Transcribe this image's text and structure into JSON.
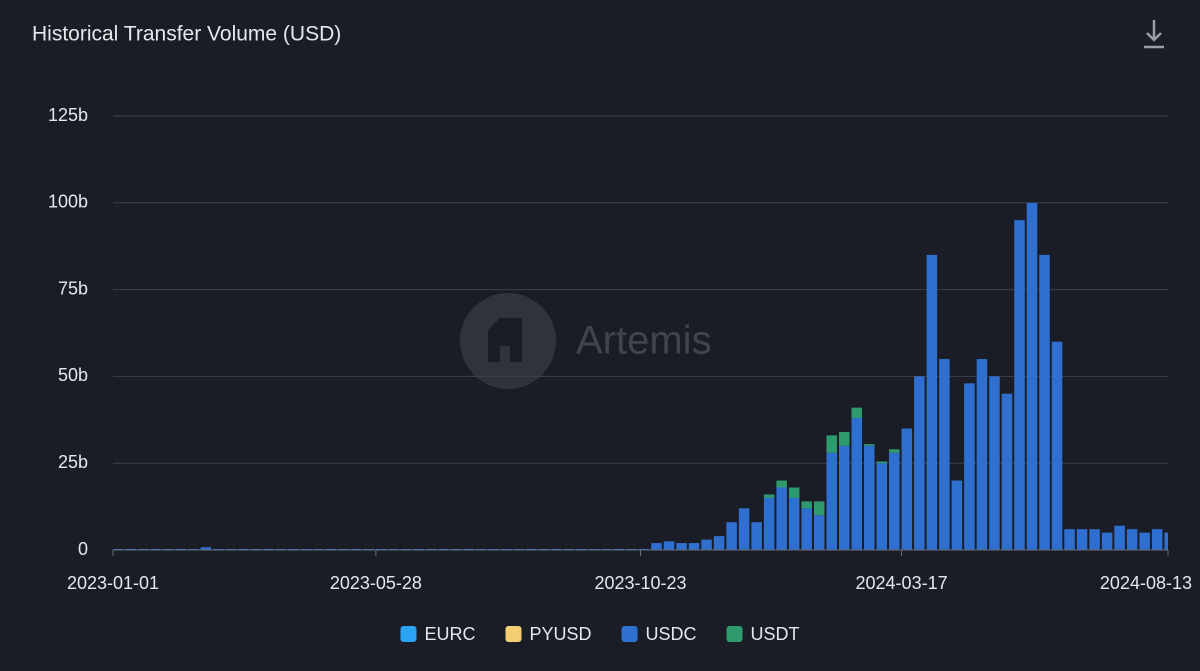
{
  "chart_data": {
    "type": "stacked-bar",
    "title": "Historical Transfer Volume (USD)",
    "watermark": "Artemis",
    "x": [
      "2023-01-01",
      "2023-01-08",
      "2023-01-15",
      "2023-01-22",
      "2023-01-29",
      "2023-02-05",
      "2023-02-12",
      "2023-02-19",
      "2023-02-26",
      "2023-03-05",
      "2023-03-12",
      "2023-03-19",
      "2023-03-26",
      "2023-04-02",
      "2023-04-09",
      "2023-04-16",
      "2023-04-23",
      "2023-04-30",
      "2023-05-07",
      "2023-05-14",
      "2023-05-21",
      "2023-05-28",
      "2023-06-04",
      "2023-06-11",
      "2023-06-18",
      "2023-06-25",
      "2023-07-02",
      "2023-07-09",
      "2023-07-16",
      "2023-07-23",
      "2023-07-30",
      "2023-08-06",
      "2023-08-13",
      "2023-08-20",
      "2023-08-27",
      "2023-09-03",
      "2023-09-10",
      "2023-09-17",
      "2023-09-24",
      "2023-10-01",
      "2023-10-08",
      "2023-10-15",
      "2023-10-22",
      "2023-10-29",
      "2023-11-05",
      "2023-11-12",
      "2023-11-19",
      "2023-11-26",
      "2023-12-03",
      "2023-12-10",
      "2023-12-17",
      "2023-12-24",
      "2023-12-31",
      "2024-01-07",
      "2024-01-14",
      "2024-01-21",
      "2024-01-28",
      "2024-02-04",
      "2024-02-11",
      "2024-02-18",
      "2024-02-25",
      "2024-03-03",
      "2024-03-10",
      "2024-03-17",
      "2024-03-24",
      "2024-03-31",
      "2024-04-07",
      "2024-04-14",
      "2024-04-21",
      "2024-04-28",
      "2024-05-05",
      "2024-05-12",
      "2024-05-19",
      "2024-05-26",
      "2024-06-02",
      "2024-06-09",
      "2024-06-16",
      "2024-06-23",
      "2024-06-30",
      "2024-07-07",
      "2024-07-14",
      "2024-07-21",
      "2024-07-28",
      "2024-08-04",
      "2024-08-11"
    ],
    "xlim": [
      "2023-01-01",
      "2024-08-13"
    ],
    "xticks": [
      "2023-01-01",
      "2023-05-28",
      "2023-10-23",
      "2024-03-17",
      "2024-08-13"
    ],
    "ylim": [
      0,
      125
    ],
    "yticks": [
      0,
      {
        "value": 25,
        "label": "25b"
      },
      {
        "value": 50,
        "label": "50b"
      },
      {
        "value": 75,
        "label": "75b"
      },
      {
        "value": 100,
        "label": "100b"
      },
      {
        "value": 125,
        "label": "125b"
      }
    ],
    "grid": true,
    "legend": "bottom",
    "series": [
      {
        "name": "EURC",
        "color": "#2ba3f5",
        "values": [
          0,
          0,
          0,
          0,
          0,
          0,
          0,
          0,
          0,
          0,
          0,
          0,
          0,
          0,
          0,
          0,
          0,
          0,
          0,
          0,
          0,
          0,
          0,
          0,
          0,
          0,
          0,
          0,
          0,
          0,
          0,
          0,
          0,
          0,
          0,
          0,
          0,
          0,
          0,
          0,
          0,
          0,
          0,
          0,
          0,
          0,
          0,
          0,
          0,
          0,
          0,
          0,
          0,
          0,
          0,
          0,
          0,
          0,
          0,
          0,
          0,
          0,
          0,
          0,
          0,
          0,
          0,
          0,
          0,
          0,
          0,
          0,
          0,
          0,
          0,
          0,
          0,
          0,
          0,
          0,
          0,
          0,
          0,
          0,
          0
        ]
      },
      {
        "name": "PYUSD",
        "color": "#f3cf72",
        "values": [
          0,
          0,
          0,
          0,
          0,
          0,
          0,
          0,
          0,
          0,
          0,
          0,
          0,
          0,
          0,
          0,
          0,
          0,
          0,
          0,
          0,
          0,
          0,
          0,
          0,
          0,
          0,
          0,
          0,
          0,
          0,
          0,
          0,
          0,
          0,
          0,
          0,
          0,
          0,
          0,
          0,
          0,
          0,
          0,
          0,
          0,
          0,
          0,
          0,
          0,
          0,
          0,
          0,
          0,
          0,
          0,
          0,
          0,
          0,
          0,
          0,
          0,
          0,
          0,
          0,
          0,
          0,
          0,
          0,
          0,
          0,
          0,
          0,
          0,
          0,
          0,
          0,
          0,
          0,
          0,
          0,
          0,
          0,
          0,
          0
        ]
      },
      {
        "name": "USDC",
        "color": "#2f6fcf",
        "values": [
          0.3,
          0.3,
          0.3,
          0.3,
          0.3,
          0.3,
          0.3,
          0.8,
          0.3,
          0.3,
          0.3,
          0.3,
          0.3,
          0.3,
          0.3,
          0.3,
          0.3,
          0.3,
          0.3,
          0.3,
          0.3,
          0.3,
          0.3,
          0.3,
          0.3,
          0.3,
          0.3,
          0.3,
          0.3,
          0.3,
          0.3,
          0.3,
          0.3,
          0.3,
          0.3,
          0.3,
          0.3,
          0.3,
          0.3,
          0.3,
          0.3,
          0.3,
          0.3,
          2,
          2.5,
          2,
          2,
          3,
          4,
          8,
          12,
          8,
          15,
          18,
          15,
          12,
          10,
          28,
          30,
          38,
          30,
          25,
          28,
          35,
          50,
          85,
          55,
          20,
          48,
          55,
          50,
          45,
          95,
          100,
          85,
          60,
          6,
          6,
          6,
          5,
          7,
          6,
          5,
          6,
          5
        ]
      },
      {
        "name": "USDT",
        "color": "#2f9a6e",
        "values": [
          0,
          0,
          0,
          0,
          0,
          0,
          0,
          0,
          0,
          0,
          0,
          0,
          0,
          0,
          0,
          0,
          0,
          0,
          0,
          0,
          0,
          0,
          0,
          0,
          0,
          0,
          0,
          0,
          0,
          0,
          0,
          0,
          0,
          0,
          0,
          0,
          0,
          0,
          0,
          0,
          0,
          0,
          0,
          0,
          0,
          0,
          0,
          0,
          0,
          0,
          0,
          0,
          1,
          2,
          3,
          2,
          4,
          5,
          4,
          3,
          0.5,
          0.5,
          1,
          0,
          0,
          0,
          0,
          0,
          0,
          0,
          0,
          0,
          0,
          0,
          0,
          0,
          0,
          0,
          0,
          0,
          0,
          0,
          0,
          0,
          0
        ]
      }
    ]
  }
}
